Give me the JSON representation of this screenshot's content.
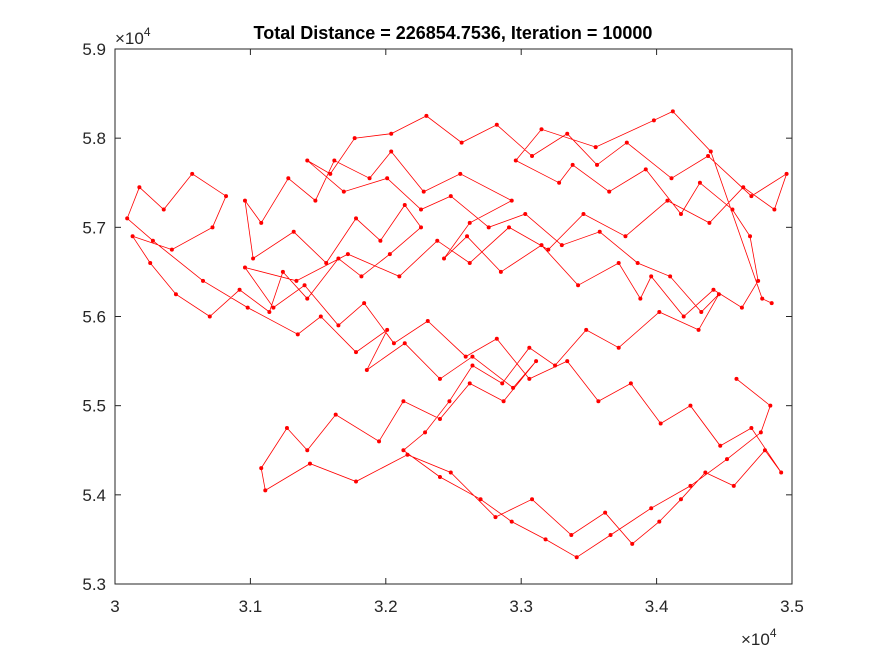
{
  "chart_data": {
    "type": "line",
    "title": "Total Distance = 226854.7536, Iteration = 10000",
    "xlim": [
      30000,
      35000
    ],
    "ylim": [
      53000,
      59000
    ],
    "xticks": [
      30000,
      31000,
      32000,
      33000,
      34000,
      35000
    ],
    "yticks": [
      53000,
      54000,
      55000,
      56000,
      57000,
      58000,
      59000
    ],
    "xtick_labels": [
      "3",
      "3.1",
      "3.2",
      "3.3",
      "3.4",
      "3.5"
    ],
    "ytick_labels": [
      "5.3",
      "5.4",
      "5.5",
      "5.6",
      "5.7",
      "5.8",
      "5.9"
    ],
    "x_exponent": {
      "base": "×10",
      "power": "4"
    },
    "y_exponent": {
      "base": "×10",
      "power": "4"
    },
    "grid": false,
    "box": true,
    "line_color": "#ff0000",
    "marker": "dot",
    "x": [
      34850,
      34780,
      34400,
      34120,
      33980,
      33550,
      33150,
      32960,
      33280,
      33380,
      33650,
      33920,
      34180,
      34320,
      34560,
      34690,
      34750,
      34630,
      34420,
      34200,
      33960,
      33880,
      33720,
      33420,
      33150,
      32850,
      32600,
      32430,
      32620,
      32930,
      32550,
      32280,
      32040,
      31880,
      31620,
      31480,
      31280,
      31080,
      30960,
      31020,
      31320,
      31560,
      31780,
      31960,
      32140,
      32260,
      32030,
      31820,
      31650,
      31420,
      31240,
      31140,
      30920,
      30700,
      30450,
      30260,
      30130,
      30420,
      30720,
      30820,
      30570,
      30360,
      30180,
      30090,
      30280,
      30650,
      30980,
      31350,
      31520,
      31780,
      32010,
      31860,
      32140,
      32400,
      32640,
      32940,
      33110,
      32870,
      32620,
      32400,
      32130,
      31950,
      31630,
      31420,
      31270,
      31080,
      31110,
      31440,
      31780,
      32160,
      32480,
      32810,
      33080,
      33370,
      33620,
      33820,
      34020,
      34180,
      34360,
      34570,
      34800,
      34920,
      34700,
      34470,
      34250,
      34030,
      33810,
      33570,
      33340,
      33060,
      32820,
      32590,
      32310,
      32060,
      31840,
      31650,
      31400,
      31170,
      30960,
      31340,
      31720,
      32100,
      32380,
      32620,
      32910,
      33200,
      33460,
      33770,
      34080,
      34390,
      34640,
      34870,
      34960,
      34700,
      34380,
      34110,
      33780,
      33560,
      33340,
      33080,
      32820,
      32560,
      32300,
      32040,
      31770,
      31590,
      31420,
      31690,
      32010,
      32260,
      32480,
      32760,
      33030,
      33300,
      33580,
      33860,
      34100,
      34330,
      34460,
      34310,
      34020,
      33720,
      33480,
      33250,
      33060,
      32860,
      32640,
      32470,
      32290,
      32130,
      32400,
      32700,
      32930,
      33180,
      33410,
      33660,
      33960,
      34250,
      34520,
      34770,
      34840,
      34590
    ],
    "y": [
      56150,
      56200,
      57850,
      58300,
      58200,
      57900,
      58100,
      57750,
      57500,
      57700,
      57400,
      57650,
      57150,
      57500,
      57200,
      56900,
      56400,
      56100,
      56300,
      56000,
      56450,
      56200,
      56600,
      56350,
      56800,
      56500,
      56900,
      56650,
      57050,
      57300,
      57600,
      57400,
      57850,
      57550,
      57750,
      57300,
      57550,
      57050,
      57300,
      56650,
      56950,
      56600,
      57100,
      56850,
      57250,
      57000,
      56700,
      56450,
      56650,
      56200,
      56500,
      56050,
      56300,
      56000,
      56250,
      56600,
      56900,
      56750,
      57000,
      57350,
      57600,
      57200,
      57450,
      57100,
      56850,
      56400,
      56100,
      55800,
      56000,
      55600,
      55850,
      55400,
      55700,
      55300,
      55550,
      55200,
      55500,
      55050,
      55250,
      54850,
      55050,
      54600,
      54900,
      54500,
      54750,
      54300,
      54050,
      54350,
      54150,
      54450,
      54250,
      53750,
      53950,
      53550,
      53800,
      53450,
      53700,
      53950,
      54250,
      54100,
      54500,
      54250,
      54750,
      54550,
      55000,
      54800,
      55250,
      55050,
      55500,
      55300,
      55750,
      55550,
      55950,
      55700,
      56150,
      55900,
      56350,
      56100,
      56550,
      56400,
      56700,
      56450,
      56850,
      56600,
      57000,
      56750,
      57150,
      56900,
      57300,
      57050,
      57450,
      57200,
      57600,
      57350,
      57800,
      57550,
      57950,
      57700,
      58050,
      57800,
      58150,
      57950,
      58250,
      58050,
      58000,
      57600,
      57750,
      57400,
      57550,
      57200,
      57350,
      57000,
      57150,
      56800,
      56950,
      56600,
      56450,
      56050,
      56250,
      55850,
      56050,
      55650,
      55850,
      55450,
      55650,
      55250,
      55450,
      55050,
      54700,
      54500,
      54200,
      53950,
      53700,
      53500,
      53300,
      53550,
      53850,
      54100,
      54400,
      54700,
      55000,
      55300
    ]
  }
}
